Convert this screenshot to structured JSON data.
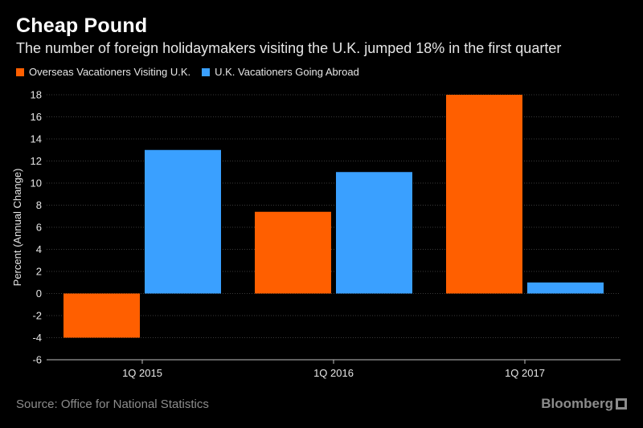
{
  "header": {
    "title": "Cheap Pound",
    "subtitle": "The number of foreign holidaymakers visiting the U.K. jumped 18% in the first quarter"
  },
  "footer": {
    "source": "Source: Office for National Statistics",
    "brand": "Bloomberg"
  },
  "chart_data": {
    "type": "bar",
    "categories": [
      "1Q 2015",
      "1Q 2016",
      "1Q 2017"
    ],
    "series": [
      {
        "name": "Overseas Vacationers Visiting U.K.",
        "color": "#ff5f00",
        "values": [
          -4,
          7.4,
          18
        ]
      },
      {
        "name": "U.K. Vacationers Going Abroad",
        "color": "#3aa0ff",
        "values": [
          13,
          11,
          1
        ]
      }
    ],
    "ylabel": "Percent (Annual Change)",
    "ylim": [
      -6,
      18
    ],
    "yticks": [
      -6,
      -4,
      -2,
      0,
      2,
      4,
      6,
      8,
      10,
      12,
      14,
      16,
      18
    ],
    "grid": true,
    "legend": "top-left"
  }
}
